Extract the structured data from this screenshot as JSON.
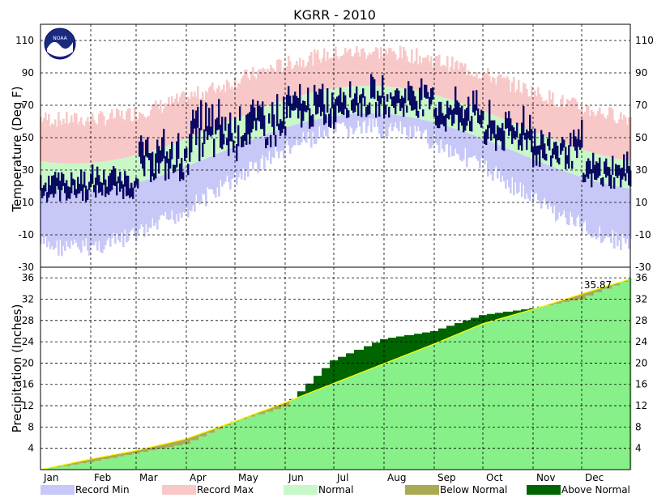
{
  "chart_data": {
    "title": "KGRR - 2010",
    "months": [
      "Jan",
      "Feb",
      "Mar",
      "Apr",
      "May",
      "Jun",
      "Jul",
      "Aug",
      "Sep",
      "Oct",
      "Nov",
      "Dec"
    ],
    "temperature": {
      "type": "area",
      "ylabel": "Temperature (Deg F)",
      "ylim": [
        -30,
        120
      ],
      "yticks": [
        -30,
        -10,
        10,
        30,
        50,
        70,
        90,
        110
      ],
      "grid": true,
      "colors": {
        "record_min": "#c8c8f8",
        "record_max": "#f8c8c8",
        "normal": "#c8f8c8",
        "observed": "#0a0a64"
      },
      "series_shape": {
        "normal_low": {
          "base": 41,
          "amplitude": 24,
          "coldest_day": 20
        },
        "normal_high": {
          "base": 58,
          "amplitude": 24,
          "coldest_day": 20
        },
        "record_low": {
          "base": 25,
          "amplitude": 37,
          "coldest_day": 20
        },
        "record_high": {
          "base": 77,
          "amplitude": 21,
          "coldest_day": 20
        },
        "observed_monthly_range": [
          [
            10,
            32
          ],
          [
            12,
            32
          ],
          [
            22,
            55
          ],
          [
            35,
            78
          ],
          [
            42,
            80
          ],
          [
            55,
            85
          ],
          [
            62,
            88
          ],
          [
            62,
            88
          ],
          [
            52,
            82
          ],
          [
            40,
            72
          ],
          [
            30,
            60
          ],
          [
            18,
            40
          ]
        ]
      }
    },
    "precipitation": {
      "type": "area",
      "ylabel": "Precipitation (Inches)",
      "ylim": [
        0,
        38
      ],
      "yticks": [
        4,
        8,
        12,
        16,
        20,
        24,
        28,
        32,
        36
      ],
      "total_label": "35.87",
      "colors": {
        "normal": "#88f088",
        "below_normal": "#aaaa55",
        "above_normal": "#006400",
        "normal_line": "#ffff00"
      },
      "normal_cumulative_month_end": [
        2.0,
        3.6,
        5.8,
        9.1,
        12.6,
        16.2,
        19.9,
        23.6,
        27.4,
        30.1,
        33.0,
        35.9
      ],
      "observed_cumulative_month_end": [
        1.4,
        3.0,
        4.8,
        9.0,
        11.8,
        20.5,
        24.5,
        26.0,
        29.0,
        30.3,
        32.0,
        35.87
      ]
    },
    "legend": [
      {
        "label": "Record Min",
        "color": "#c8c8f8"
      },
      {
        "label": "Record Max",
        "color": "#f8c8c8"
      },
      {
        "label": "Normal",
        "color": "#c8f8c8"
      },
      {
        "label": "Below Normal",
        "color": "#aaaa55"
      },
      {
        "label": "Above Normal",
        "color": "#006400"
      }
    ],
    "logo_text": "NOAA"
  }
}
